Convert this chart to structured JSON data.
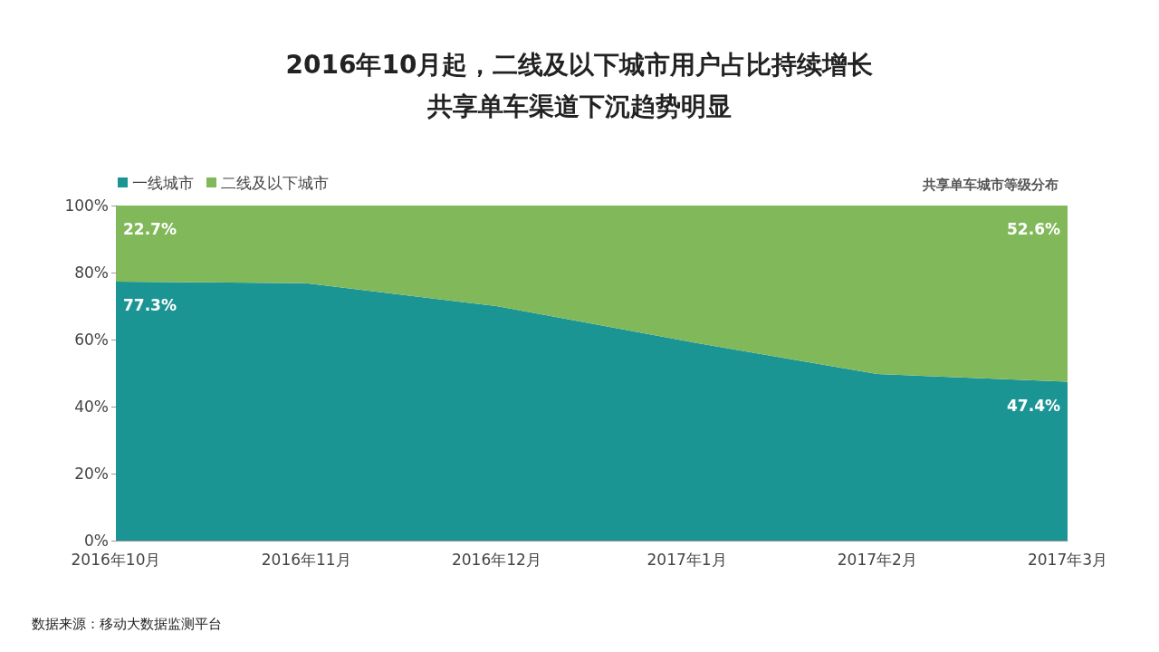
{
  "chart_data": {
    "type": "area",
    "title": "2016年10月起，二线及以下城市用户占比持续增长",
    "subtitle": "共享单车渠道下沉趋势明显",
    "annotations": [
      "共享单车城市等级分布",
      "数据来源：移动大数据监测平台"
    ],
    "categories": [
      "2016年10月",
      "2016年11月",
      "2016年12月",
      "2017年1月",
      "2017年2月",
      "2017年3月"
    ],
    "stacked": true,
    "legend": "top left",
    "grid": false,
    "ylim": [
      0,
      100
    ],
    "yticks": [
      {
        "value": 0,
        "label": "0%"
      },
      {
        "value": 20,
        "label": "20%"
      },
      {
        "value": 40,
        "label": "40%"
      },
      {
        "value": 60,
        "label": "60%"
      },
      {
        "value": 80,
        "label": "80%"
      },
      {
        "value": 100,
        "label": "100%"
      }
    ],
    "series": [
      {
        "name": "一线城市",
        "color": "#1b9594",
        "values": [
          77.3,
          76.8,
          70.0,
          59.5,
          49.7,
          47.4
        ],
        "value_labels": [
          "77.3%",
          null,
          null,
          null,
          null,
          "47.4%"
        ]
      },
      {
        "name": "二线及以下城市",
        "color": "#80b85a",
        "values": [
          22.7,
          23.2,
          30.0,
          40.5,
          50.3,
          52.6
        ],
        "value_labels": [
          "22.7%",
          null,
          null,
          null,
          null,
          "52.6%"
        ]
      }
    ]
  }
}
